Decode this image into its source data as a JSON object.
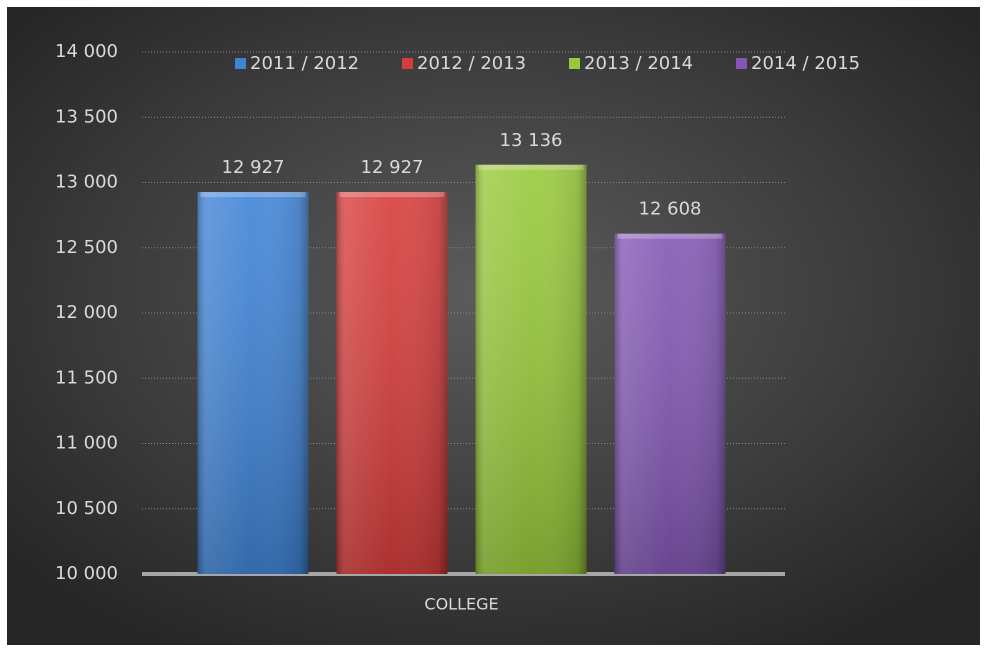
{
  "chart_data": {
    "type": "bar",
    "categories": [
      "COLLEGE"
    ],
    "series": [
      {
        "name": "2011 / 2012",
        "color": "#3f83d6",
        "values": [
          12927
        ],
        "value_labels": [
          "12 927"
        ]
      },
      {
        "name": "2012 / 2013",
        "color": "#d63c3a",
        "values": [
          12927
        ],
        "value_labels": [
          "12 927"
        ]
      },
      {
        "name": "2013 / 2014",
        "color": "#98c93a",
        "values": [
          13136
        ],
        "value_labels": [
          "13 136"
        ]
      },
      {
        "name": "2014 / 2015",
        "color": "#8257b4",
        "values": [
          12608
        ],
        "value_labels": [
          "12 608"
        ]
      }
    ],
    "ylim": [
      10000,
      14000
    ],
    "yticks": [
      {
        "value": 10000,
        "label": "10 000"
      },
      {
        "value": 10500,
        "label": "10 500"
      },
      {
        "value": 11000,
        "label": "11 000"
      },
      {
        "value": 11500,
        "label": "11 500"
      },
      {
        "value": 12000,
        "label": "12 000"
      },
      {
        "value": 12500,
        "label": "12 500"
      },
      {
        "value": 13000,
        "label": "13 000"
      },
      {
        "value": 13500,
        "label": "13 500"
      },
      {
        "value": 14000,
        "label": "14 000"
      }
    ],
    "grid": true,
    "legend": "top"
  }
}
